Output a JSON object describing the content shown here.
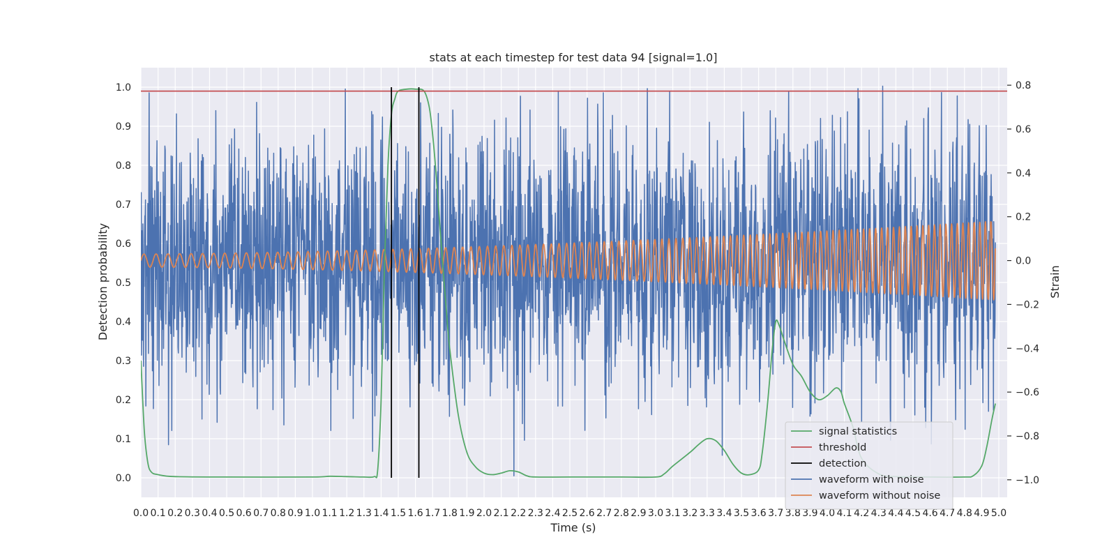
{
  "chart_data": {
    "type": "line",
    "title": "stats at each timestep for test data 94 [signal=1.0]",
    "xlabel": "Time (s)",
    "ylabel": "Detection probability",
    "y2label": "Strain",
    "xlim": [
      0.0,
      5.0
    ],
    "ylim": [
      -0.05,
      1.05
    ],
    "y2lim": [
      -1.08,
      0.88
    ],
    "x_ticks": [
      "0.0",
      "0.1",
      "0.2",
      "0.3",
      "0.4",
      "0.5",
      "0.6",
      "0.7",
      "0.8",
      "0.9",
      "1.0",
      "1.1",
      "1.2",
      "1.3",
      "1.4",
      "1.5",
      "1.6",
      "1.7",
      "1.8",
      "1.9",
      "2.0",
      "2.1",
      "2.2",
      "2.3",
      "2.4",
      "2.5",
      "2.6",
      "2.7",
      "2.8",
      "2.9",
      "3.0",
      "3.1",
      "3.2",
      "3.3",
      "3.4",
      "3.5",
      "3.6",
      "3.7",
      "3.8",
      "3.9",
      "4.0",
      "4.1",
      "4.2",
      "4.3",
      "4.4",
      "4.5",
      "4.6",
      "4.7",
      "4.8",
      "4.9",
      "5.0"
    ],
    "y_ticks": [
      "0.0",
      "0.1",
      "0.2",
      "0.3",
      "0.4",
      "0.5",
      "0.6",
      "0.7",
      "0.8",
      "0.9",
      "1.0"
    ],
    "y2_ticks": [
      "−1.0",
      "−0.8",
      "−0.6",
      "−0.4",
      "−0.2",
      "0.0",
      "0.2",
      "0.4",
      "0.6",
      "0.8"
    ],
    "grid": true,
    "legend_position": "bottom-right",
    "colors": {
      "signal_statistics": "#55a868",
      "threshold": "#c44e52",
      "detection": "#000000",
      "waveform_with_noise": "#4c72b0",
      "waveform_without_noise": "#dd8452",
      "plot_background": "#eaeaf2",
      "grid": "#ffffff"
    },
    "series": [
      {
        "name": "signal statistics",
        "axis": "left",
        "x": [
          0.0,
          0.02,
          0.04,
          0.06,
          0.1,
          0.2,
          0.5,
          1.0,
          1.1,
          1.2,
          1.3,
          1.36,
          1.38,
          1.4,
          1.42,
          1.44,
          1.46,
          1.48,
          1.5,
          1.55,
          1.6,
          1.65,
          1.68,
          1.7,
          1.72,
          1.74,
          1.76,
          1.78,
          1.8,
          1.85,
          1.9,
          1.95,
          2.0,
          2.05,
          2.1,
          2.15,
          2.2,
          2.25,
          2.3,
          2.5,
          2.8,
          3.0,
          3.05,
          3.1,
          3.2,
          3.25,
          3.3,
          3.35,
          3.4,
          3.45,
          3.5,
          3.55,
          3.6,
          3.62,
          3.65,
          3.68,
          3.7,
          3.72,
          3.75,
          3.8,
          3.85,
          3.9,
          3.95,
          4.0,
          4.05,
          4.08,
          4.1,
          4.15,
          4.2,
          4.3,
          4.4,
          4.6,
          4.8,
          4.85,
          4.9,
          4.93,
          4.96,
          4.98
        ],
        "y": [
          0.3,
          0.12,
          0.04,
          0.015,
          0.008,
          0.003,
          0.002,
          0.002,
          0.004,
          0.003,
          0.002,
          0.003,
          0.02,
          0.2,
          0.55,
          0.8,
          0.93,
          0.97,
          0.99,
          0.995,
          0.995,
          0.99,
          0.95,
          0.88,
          0.78,
          0.66,
          0.54,
          0.43,
          0.33,
          0.16,
          0.065,
          0.028,
          0.012,
          0.008,
          0.012,
          0.018,
          0.015,
          0.005,
          0.002,
          0.002,
          0.002,
          0.002,
          0.01,
          0.03,
          0.065,
          0.085,
          0.1,
          0.095,
          0.07,
          0.035,
          0.012,
          0.008,
          0.02,
          0.06,
          0.18,
          0.33,
          0.4,
          0.39,
          0.35,
          0.29,
          0.26,
          0.22,
          0.2,
          0.21,
          0.23,
          0.22,
          0.19,
          0.13,
          0.05,
          0.01,
          0.003,
          0.002,
          0.002,
          0.005,
          0.03,
          0.08,
          0.15,
          0.19
        ]
      },
      {
        "name": "threshold",
        "axis": "left",
        "x": [
          -0.15,
          5.15
        ],
        "y": [
          0.99,
          0.99
        ]
      },
      {
        "name": "detection",
        "axis": "left",
        "x_values": [
          1.46,
          1.62
        ],
        "y_range": [
          0.0,
          1.0
        ]
      },
      {
        "name": "waveform with noise",
        "axis": "right",
        "x_range": [
          0.0,
          4.98
        ],
        "approx_amplitude_std": 0.28,
        "approx_max": 0.8,
        "approx_min": -1.0
      },
      {
        "name": "waveform without noise",
        "axis": "right",
        "x_range": [
          0.0,
          4.98
        ],
        "amplitude_start": 0.03,
        "amplitude_end": 0.18,
        "frequency_start_hz": 14,
        "frequency_end_hz": 31
      }
    ],
    "legend": [
      {
        "label": "signal statistics",
        "color": "#55a868"
      },
      {
        "label": "threshold",
        "color": "#c44e52"
      },
      {
        "label": "detection",
        "color": "#000000"
      },
      {
        "label": "waveform with noise",
        "color": "#4c72b0"
      },
      {
        "label": "waveform without noise",
        "color": "#dd8452"
      }
    ]
  }
}
